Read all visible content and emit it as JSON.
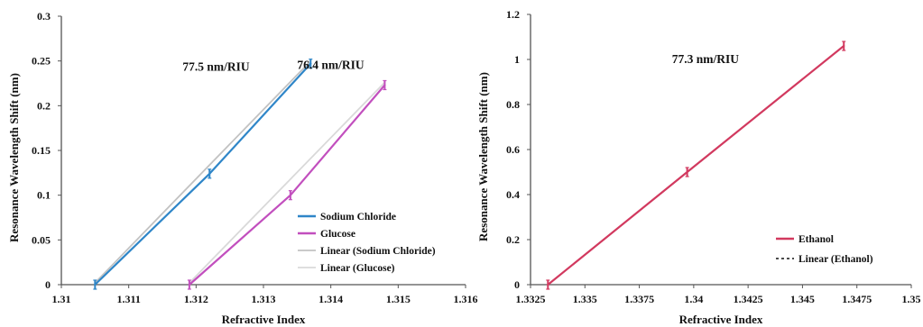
{
  "chart_data": [
    {
      "type": "line",
      "xlabel": "Refractive Index",
      "ylabel": "Resonance Wavelength Shift (nm)",
      "xlim": [
        1.31,
        1.316
      ],
      "ylim": [
        0,
        0.3
      ],
      "x_ticks": [
        "1.31",
        "1.311",
        "1.312",
        "1.313",
        "1.314",
        "1.315",
        "1.316"
      ],
      "y_ticks": [
        "0",
        "0.05",
        "0.1",
        "0.15",
        "0.2",
        "0.25",
        "0.3"
      ],
      "grid": false,
      "legend_position": "bottom-right",
      "series": [
        {
          "name": "Sodium Chloride",
          "color": "#2f86c8",
          "style": "solid",
          "x": [
            1.3105,
            1.3122,
            1.3137
          ],
          "y": [
            0,
            0.124,
            0.247
          ]
        },
        {
          "name": "Glucose",
          "color": "#c24fbe",
          "style": "solid",
          "x": [
            1.3119,
            1.3134,
            1.3148
          ],
          "y": [
            0,
            0.1,
            0.223
          ]
        },
        {
          "name": "Linear (Sodium Chloride)",
          "color": "#c2c2c2",
          "style": "solid",
          "x": [
            1.3105,
            1.3137
          ],
          "y": [
            0.002,
            0.25
          ]
        },
        {
          "name": "Linear (Glucose)",
          "color": "#d9d9d9",
          "style": "solid",
          "x": [
            1.3119,
            1.3148
          ],
          "y": [
            0.002,
            0.226
          ]
        }
      ],
      "annotations": [
        {
          "text": "77.5 nm/RIU",
          "x": 1.3118,
          "y": 0.239
        },
        {
          "text": "76.4 nm/RIU",
          "x": 1.3135,
          "y": 0.241
        }
      ]
    },
    {
      "type": "line",
      "xlabel": "Refractive Index",
      "ylabel": "Resonance Wavelength Shift (nm)",
      "xlim": [
        1.3325,
        1.35
      ],
      "ylim": [
        0,
        1.2
      ],
      "x_ticks": [
        "1.3325",
        "1.335",
        "1.3375",
        "1.34",
        "1.3425",
        "1.345",
        "1.3475",
        "1.35"
      ],
      "y_ticks": [
        "0",
        "0.2",
        "0.4",
        "0.6",
        "0.8",
        "1",
        "1.2"
      ],
      "grid": false,
      "legend_position": "bottom-right",
      "series": [
        {
          "name": "Ethanol",
          "color": "#d2395f",
          "style": "solid",
          "x": [
            1.3333,
            1.3397,
            1.3469
          ],
          "y": [
            0,
            0.5,
            1.06
          ]
        },
        {
          "name": "Linear (Ethanol)",
          "color": "#333333",
          "style": "dashed",
          "x": [
            1.3333,
            1.3469
          ],
          "y": [
            0,
            1.06
          ]
        }
      ],
      "annotations": [
        {
          "text": "77.3 nm/RIU",
          "x": 1.339,
          "y": 0.985
        }
      ]
    }
  ]
}
